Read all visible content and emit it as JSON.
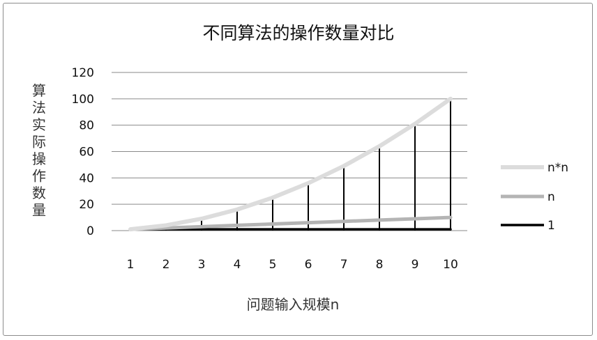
{
  "chart_data": {
    "type": "line",
    "title": "不同算法的操作数量对比",
    "xlabel": "问题输入规模n",
    "ylabel": "算法实际操作数量",
    "categories": [
      "1",
      "2",
      "3",
      "4",
      "5",
      "6",
      "7",
      "8",
      "9",
      "10"
    ],
    "x": [
      1,
      2,
      3,
      4,
      5,
      6,
      7,
      8,
      9,
      10
    ],
    "yticks": [
      0,
      20,
      40,
      60,
      80,
      100,
      120
    ],
    "ylim": [
      0,
      120
    ],
    "grid": true,
    "legend_position": "right",
    "drop_lines": true,
    "series": [
      {
        "name": "n*n",
        "values": [
          1,
          4,
          9,
          16,
          25,
          36,
          49,
          64,
          81,
          100
        ],
        "color": "#dcdcdc"
      },
      {
        "name": "n",
        "values": [
          1,
          2,
          3,
          4,
          5,
          6,
          7,
          8,
          9,
          10
        ],
        "color": "#b4b4b4"
      },
      {
        "name": "1",
        "values": [
          1,
          1,
          1,
          1,
          1,
          1,
          1,
          1,
          1,
          1
        ],
        "color": "#000000"
      }
    ]
  }
}
